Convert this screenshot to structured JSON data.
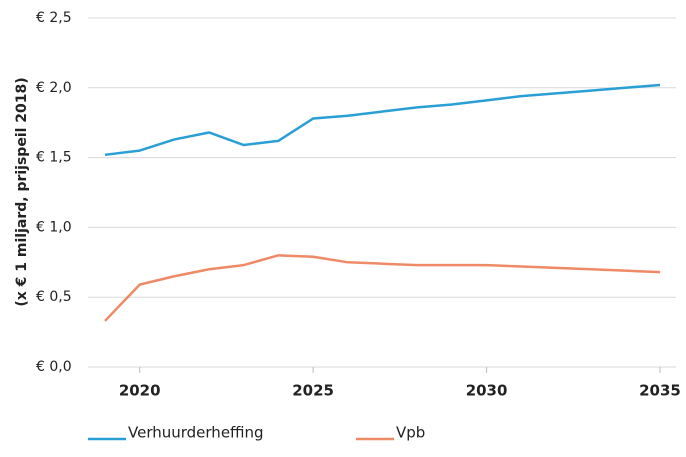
{
  "chart_data": {
    "type": "line",
    "y_label": "(x € 1 miljard, prijspeil 2018)",
    "x": [
      2019,
      2020,
      2021,
      2022,
      2023,
      2024,
      2025,
      2026,
      2027,
      2028,
      2029,
      2030,
      2031,
      2032,
      2033,
      2034,
      2035
    ],
    "series": [
      {
        "name": "Verhuurderheffing",
        "color": "#2a9fd6",
        "values": [
          1.52,
          1.55,
          1.63,
          1.68,
          1.59,
          1.62,
          1.78,
          1.8,
          1.83,
          1.86,
          1.88,
          1.91,
          1.94,
          1.96,
          1.98,
          2.0,
          2.02
        ]
      },
      {
        "name": "Vpb",
        "color": "#ee8a66",
        "values": [
          0.33,
          0.59,
          0.65,
          0.7,
          0.73,
          0.8,
          0.79,
          0.75,
          0.74,
          0.73,
          0.73,
          0.73,
          0.72,
          0.71,
          0.7,
          0.69,
          0.68
        ]
      }
    ],
    "xlim": [
      2019,
      2035
    ],
    "xticks": [
      2020,
      2025,
      2030,
      2035
    ],
    "ylim": [
      0,
      2.5
    ],
    "yticks": [
      {
        "value": 0,
        "label": "€ 0,0"
      },
      {
        "value": 0.5,
        "label": "€ 0,5"
      },
      {
        "value": 1,
        "label": "€ 1,0"
      },
      {
        "value": 1.5,
        "label": "€ 1,5"
      },
      {
        "value": 2,
        "label": "€ 2,0"
      },
      {
        "value": 2.5,
        "label": "€ 2,5"
      }
    ],
    "grid": true,
    "legend": "bottom"
  }
}
